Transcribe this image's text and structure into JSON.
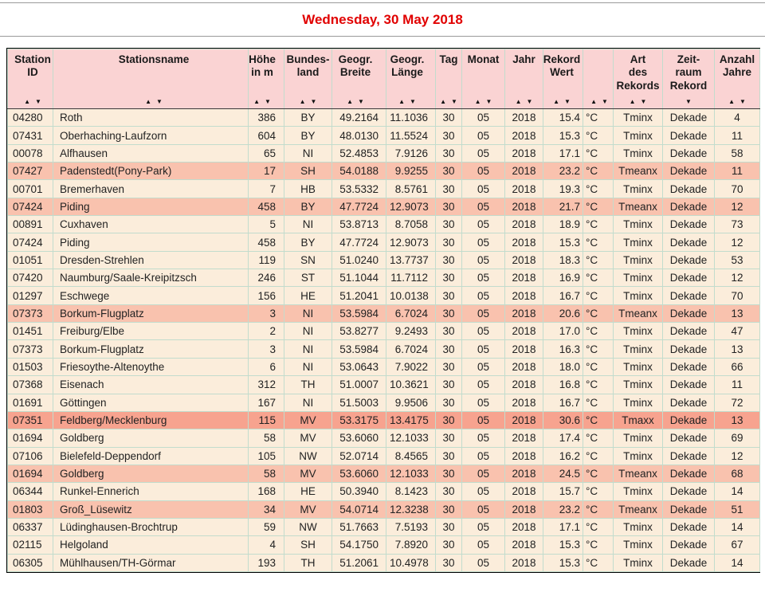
{
  "page": {
    "title": "Wednesday, 30 May 2018"
  },
  "colors": {
    "title": "#e10000",
    "header_bg": "#fad3d3",
    "row_bg": "#fbeddb",
    "row_tmeanx_bg": "#f9c2ae",
    "row_tmaxx_bg": "#f7a38f",
    "grid": "#c2dccd",
    "outer_border": "#000000",
    "text": "#222222",
    "rule": "#9a9a9a"
  },
  "icons": {
    "sort_asc": "▲",
    "sort_desc": "▼"
  },
  "table": {
    "columns": [
      {
        "key": "station_id",
        "label": "Station\nID",
        "sort": "both"
      },
      {
        "key": "name",
        "label": "Stationsname",
        "sort": "both"
      },
      {
        "key": "hoehe",
        "label": "Höhe\nin m",
        "sort": "both"
      },
      {
        "key": "bundesland",
        "label": "Bundes-\nland",
        "sort": "both"
      },
      {
        "key": "breite",
        "label": "Geogr.\nBreite",
        "sort": "both"
      },
      {
        "key": "laenge",
        "label": "Geogr.\nLänge",
        "sort": "both"
      },
      {
        "key": "tag",
        "label": "Tag",
        "sort": "both"
      },
      {
        "key": "monat",
        "label": "Monat",
        "sort": "both"
      },
      {
        "key": "jahr",
        "label": "Jahr",
        "sort": "both"
      },
      {
        "key": "wert",
        "label": "Rekord\nWert",
        "sort": "both"
      },
      {
        "key": "einheit",
        "label": "",
        "sort": "both"
      },
      {
        "key": "art",
        "label": "Art\ndes\nRekords",
        "sort": "both"
      },
      {
        "key": "zeitraum",
        "label": "Zeit-\nraum\nRekord",
        "sort": "desc"
      },
      {
        "key": "jahre",
        "label": "Anzahl\nJahre",
        "sort": "both"
      }
    ],
    "rows": [
      {
        "highlight": "none",
        "cells": [
          "04280",
          "Roth",
          "386",
          "BY",
          "49.2164",
          "11.1036",
          "30",
          "05",
          "2018",
          "15.4",
          "°C",
          "Tminx",
          "Dekade",
          "4"
        ]
      },
      {
        "highlight": "none",
        "cells": [
          "07431",
          "Oberhaching-Laufzorn",
          "604",
          "BY",
          "48.0130",
          "11.5524",
          "30",
          "05",
          "2018",
          "15.3",
          "°C",
          "Tminx",
          "Dekade",
          "11"
        ]
      },
      {
        "highlight": "none",
        "cells": [
          "00078",
          "Alfhausen",
          "65",
          "NI",
          "52.4853",
          "7.9126",
          "30",
          "05",
          "2018",
          "17.1",
          "°C",
          "Tminx",
          "Dekade",
          "58"
        ]
      },
      {
        "highlight": "tmeanx",
        "cells": [
          "07427",
          "Padenstedt(Pony-Park)",
          "17",
          "SH",
          "54.0188",
          "9.9255",
          "30",
          "05",
          "2018",
          "23.2",
          "°C",
          "Tmeanx",
          "Dekade",
          "11"
        ]
      },
      {
        "highlight": "none",
        "cells": [
          "00701",
          "Bremerhaven",
          "7",
          "HB",
          "53.5332",
          "8.5761",
          "30",
          "05",
          "2018",
          "19.3",
          "°C",
          "Tminx",
          "Dekade",
          "70"
        ]
      },
      {
        "highlight": "tmeanx",
        "cells": [
          "07424",
          "Piding",
          "458",
          "BY",
          "47.7724",
          "12.9073",
          "30",
          "05",
          "2018",
          "21.7",
          "°C",
          "Tmeanx",
          "Dekade",
          "12"
        ]
      },
      {
        "highlight": "none",
        "cells": [
          "00891",
          "Cuxhaven",
          "5",
          "NI",
          "53.8713",
          "8.7058",
          "30",
          "05",
          "2018",
          "18.9",
          "°C",
          "Tminx",
          "Dekade",
          "73"
        ]
      },
      {
        "highlight": "none",
        "cells": [
          "07424",
          "Piding",
          "458",
          "BY",
          "47.7724",
          "12.9073",
          "30",
          "05",
          "2018",
          "15.3",
          "°C",
          "Tminx",
          "Dekade",
          "12"
        ]
      },
      {
        "highlight": "none",
        "cells": [
          "01051",
          "Dresden-Strehlen",
          "119",
          "SN",
          "51.0240",
          "13.7737",
          "30",
          "05",
          "2018",
          "18.3",
          "°C",
          "Tminx",
          "Dekade",
          "53"
        ]
      },
      {
        "highlight": "none",
        "cells": [
          "07420",
          "Naumburg/Saale-Kreipitzsch",
          "246",
          "ST",
          "51.1044",
          "11.7112",
          "30",
          "05",
          "2018",
          "16.9",
          "°C",
          "Tminx",
          "Dekade",
          "12"
        ]
      },
      {
        "highlight": "none",
        "cells": [
          "01297",
          "Eschwege",
          "156",
          "HE",
          "51.2041",
          "10.0138",
          "30",
          "05",
          "2018",
          "16.7",
          "°C",
          "Tminx",
          "Dekade",
          "70"
        ]
      },
      {
        "highlight": "tmeanx",
        "cells": [
          "07373",
          "Borkum-Flugplatz",
          "3",
          "NI",
          "53.5984",
          "6.7024",
          "30",
          "05",
          "2018",
          "20.6",
          "°C",
          "Tmeanx",
          "Dekade",
          "13"
        ]
      },
      {
        "highlight": "none",
        "cells": [
          "01451",
          "Freiburg/Elbe",
          "2",
          "NI",
          "53.8277",
          "9.2493",
          "30",
          "05",
          "2018",
          "17.0",
          "°C",
          "Tminx",
          "Dekade",
          "47"
        ]
      },
      {
        "highlight": "none",
        "cells": [
          "07373",
          "Borkum-Flugplatz",
          "3",
          "NI",
          "53.5984",
          "6.7024",
          "30",
          "05",
          "2018",
          "16.3",
          "°C",
          "Tminx",
          "Dekade",
          "13"
        ]
      },
      {
        "highlight": "none",
        "cells": [
          "01503",
          "Friesoythe-Altenoythe",
          "6",
          "NI",
          "53.0643",
          "7.9022",
          "30",
          "05",
          "2018",
          "18.0",
          "°C",
          "Tminx",
          "Dekade",
          "66"
        ]
      },
      {
        "highlight": "none",
        "cells": [
          "07368",
          "Eisenach",
          "312",
          "TH",
          "51.0007",
          "10.3621",
          "30",
          "05",
          "2018",
          "16.8",
          "°C",
          "Tminx",
          "Dekade",
          "11"
        ]
      },
      {
        "highlight": "none",
        "cells": [
          "01691",
          "Göttingen",
          "167",
          "NI",
          "51.5003",
          "9.9506",
          "30",
          "05",
          "2018",
          "16.7",
          "°C",
          "Tminx",
          "Dekade",
          "72"
        ]
      },
      {
        "highlight": "tmaxx",
        "cells": [
          "07351",
          "Feldberg/Mecklenburg",
          "115",
          "MV",
          "53.3175",
          "13.4175",
          "30",
          "05",
          "2018",
          "30.6",
          "°C",
          "Tmaxx",
          "Dekade",
          "13"
        ]
      },
      {
        "highlight": "none",
        "cells": [
          "01694",
          "Goldberg",
          "58",
          "MV",
          "53.6060",
          "12.1033",
          "30",
          "05",
          "2018",
          "17.4",
          "°C",
          "Tminx",
          "Dekade",
          "69"
        ]
      },
      {
        "highlight": "none",
        "cells": [
          "07106",
          "Bielefeld-Deppendorf",
          "105",
          "NW",
          "52.0714",
          "8.4565",
          "30",
          "05",
          "2018",
          "16.2",
          "°C",
          "Tminx",
          "Dekade",
          "12"
        ]
      },
      {
        "highlight": "tmeanx",
        "cells": [
          "01694",
          "Goldberg",
          "58",
          "MV",
          "53.6060",
          "12.1033",
          "30",
          "05",
          "2018",
          "24.5",
          "°C",
          "Tmeanx",
          "Dekade",
          "68"
        ]
      },
      {
        "highlight": "none",
        "cells": [
          "06344",
          "Runkel-Ennerich",
          "168",
          "HE",
          "50.3940",
          "8.1423",
          "30",
          "05",
          "2018",
          "15.7",
          "°C",
          "Tminx",
          "Dekade",
          "14"
        ]
      },
      {
        "highlight": "tmeanx",
        "cells": [
          "01803",
          "Groß_Lüsewitz",
          "34",
          "MV",
          "54.0714",
          "12.3238",
          "30",
          "05",
          "2018",
          "23.2",
          "°C",
          "Tmeanx",
          "Dekade",
          "51"
        ]
      },
      {
        "highlight": "none",
        "cells": [
          "06337",
          "Lüdinghausen-Brochtrup",
          "59",
          "NW",
          "51.7663",
          "7.5193",
          "30",
          "05",
          "2018",
          "17.1",
          "°C",
          "Tminx",
          "Dekade",
          "14"
        ]
      },
      {
        "highlight": "none",
        "cells": [
          "02115",
          "Helgoland",
          "4",
          "SH",
          "54.1750",
          "7.8920",
          "30",
          "05",
          "2018",
          "15.3",
          "°C",
          "Tminx",
          "Dekade",
          "67"
        ]
      },
      {
        "highlight": "none",
        "cells": [
          "06305",
          "Mühlhausen/TH-Görmar",
          "193",
          "TH",
          "51.2061",
          "10.4978",
          "30",
          "05",
          "2018",
          "15.3",
          "°C",
          "Tminx",
          "Dekade",
          "14"
        ]
      }
    ]
  }
}
